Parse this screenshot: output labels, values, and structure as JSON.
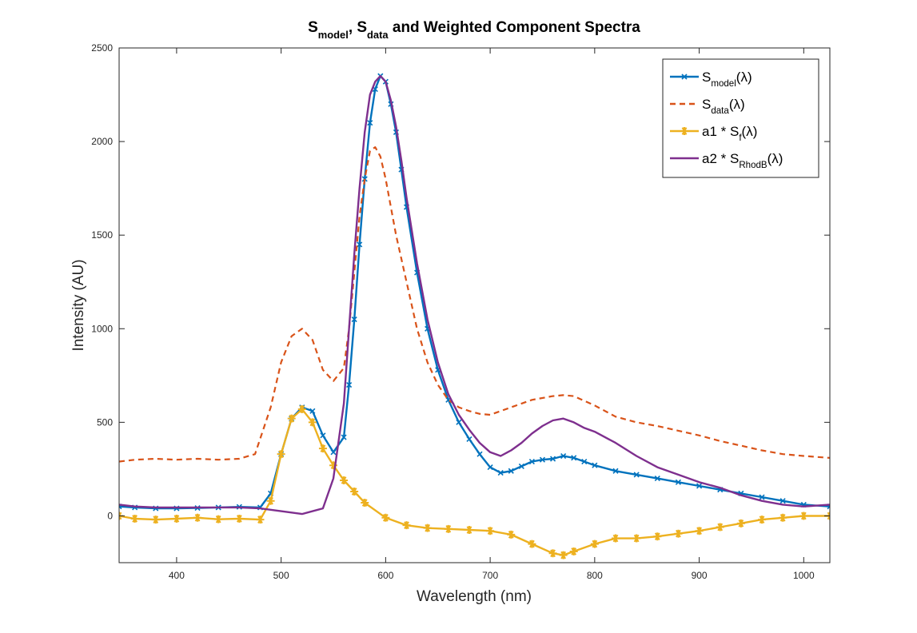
{
  "chart_data": {
    "type": "line",
    "title_parts": [
      "S",
      "model",
      ", S",
      "data",
      " and Weighted Component Spectra"
    ],
    "xlabel": "Wavelength (nm)",
    "ylabel": "Intensity (AU)",
    "xlim": [
      345,
      1025
    ],
    "ylim": [
      -250,
      2500
    ],
    "xticks": [
      400,
      500,
      600,
      700,
      800,
      900,
      1000
    ],
    "yticks": [
      0,
      500,
      1000,
      1500,
      2000,
      2500
    ],
    "xtick_labels": [
      "400",
      "500",
      "600",
      "700",
      "800",
      "900",
      "1000"
    ],
    "ytick_labels": [
      "0",
      "500",
      "1000",
      "1500",
      "2000",
      "2500"
    ],
    "grid": false,
    "legend_position": "top-right",
    "series": [
      {
        "key": "model",
        "legend_parts": [
          "S",
          "model",
          "(λ)"
        ],
        "color": "#0072BD",
        "style": "solid",
        "marker": "x",
        "x": [
          345,
          360,
          380,
          400,
          420,
          440,
          460,
          480,
          490,
          500,
          510,
          520,
          530,
          540,
          550,
          560,
          565,
          570,
          575,
          580,
          585,
          590,
          595,
          600,
          605,
          610,
          615,
          620,
          630,
          640,
          650,
          660,
          670,
          680,
          690,
          700,
          710,
          720,
          730,
          740,
          750,
          760,
          770,
          780,
          790,
          800,
          820,
          840,
          860,
          880,
          900,
          920,
          940,
          960,
          980,
          1000,
          1025
        ],
        "y": [
          50,
          45,
          40,
          40,
          42,
          45,
          48,
          45,
          120,
          330,
          520,
          580,
          560,
          430,
          340,
          420,
          700,
          1050,
          1450,
          1800,
          2100,
          2280,
          2350,
          2320,
          2200,
          2050,
          1850,
          1650,
          1300,
          1000,
          780,
          620,
          500,
          410,
          330,
          260,
          230,
          240,
          265,
          290,
          300,
          305,
          320,
          310,
          290,
          270,
          240,
          220,
          200,
          180,
          160,
          140,
          120,
          100,
          80,
          60,
          50
        ]
      },
      {
        "key": "data",
        "legend_parts": [
          "S",
          "data",
          "(λ)"
        ],
        "color": "#D95319",
        "style": "dashed",
        "x": [
          345,
          360,
          380,
          400,
          420,
          440,
          460,
          475,
          490,
          500,
          510,
          520,
          530,
          540,
          550,
          560,
          565,
          570,
          575,
          580,
          585,
          590,
          595,
          600,
          605,
          610,
          620,
          630,
          640,
          650,
          660,
          670,
          680,
          690,
          700,
          710,
          720,
          740,
          760,
          770,
          780,
          800,
          820,
          840,
          860,
          880,
          900,
          920,
          940,
          960,
          980,
          1000,
          1025
        ],
        "y": [
          290,
          300,
          305,
          300,
          305,
          300,
          305,
          330,
          580,
          820,
          960,
          1000,
          940,
          780,
          720,
          790,
          1000,
          1300,
          1600,
          1800,
          1950,
          1970,
          1920,
          1800,
          1650,
          1500,
          1250,
          1000,
          820,
          700,
          620,
          580,
          560,
          545,
          540,
          560,
          580,
          620,
          640,
          645,
          640,
          590,
          530,
          500,
          480,
          455,
          430,
          400,
          375,
          350,
          330,
          320,
          310
        ]
      },
      {
        "key": "component-f",
        "legend_parts": [
          "a1 * S",
          "f",
          "(λ)"
        ],
        "color": "#EDB120",
        "style": "solid",
        "marker": "*",
        "x": [
          345,
          360,
          380,
          400,
          420,
          440,
          460,
          480,
          490,
          500,
          510,
          520,
          530,
          540,
          550,
          560,
          570,
          580,
          600,
          620,
          640,
          660,
          680,
          700,
          720,
          740,
          760,
          770,
          780,
          800,
          820,
          840,
          860,
          880,
          900,
          920,
          940,
          960,
          980,
          1000,
          1025
        ],
        "y": [
          0,
          -15,
          -20,
          -15,
          -10,
          -18,
          -15,
          -20,
          80,
          330,
          520,
          570,
          500,
          360,
          270,
          190,
          130,
          70,
          -10,
          -50,
          -65,
          -70,
          -75,
          -80,
          -100,
          -150,
          -200,
          -210,
          -190,
          -150,
          -120,
          -120,
          -110,
          -95,
          -80,
          -60,
          -40,
          -20,
          -10,
          0,
          0
        ]
      },
      {
        "key": "component-rhodb",
        "legend_parts": [
          "a2 * S",
          "RhodB",
          "(λ)"
        ],
        "color": "#7E2F8E",
        "style": "solid",
        "x": [
          345,
          360,
          380,
          400,
          420,
          440,
          460,
          480,
          500,
          520,
          540,
          550,
          560,
          565,
          570,
          575,
          580,
          585,
          590,
          595,
          600,
          605,
          610,
          615,
          620,
          630,
          640,
          650,
          660,
          670,
          680,
          690,
          700,
          710,
          720,
          730,
          740,
          750,
          760,
          770,
          780,
          790,
          800,
          820,
          840,
          860,
          880,
          900,
          920,
          940,
          960,
          980,
          1000,
          1025
        ],
        "y": [
          60,
          50,
          45,
          45,
          45,
          45,
          45,
          40,
          25,
          10,
          40,
          200,
          600,
          1000,
          1400,
          1750,
          2050,
          2250,
          2320,
          2350,
          2320,
          2220,
          2080,
          1900,
          1700,
          1350,
          1050,
          820,
          650,
          540,
          460,
          390,
          340,
          320,
          350,
          390,
          440,
          480,
          510,
          520,
          500,
          470,
          450,
          390,
          320,
          260,
          220,
          180,
          150,
          110,
          80,
          60,
          50,
          60
        ]
      }
    ]
  }
}
